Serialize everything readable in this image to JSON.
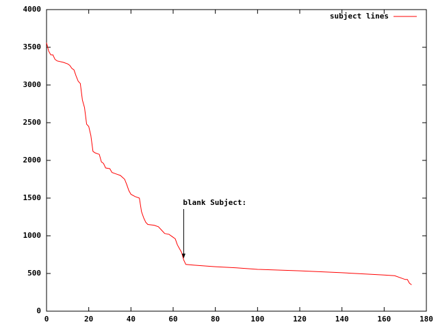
{
  "chart_data": {
    "type": "line",
    "x": [
      0,
      1,
      2,
      3,
      4,
      5,
      8,
      10,
      11,
      12,
      13,
      14,
      15,
      16,
      17,
      18,
      19,
      20,
      21,
      22,
      23,
      25,
      26,
      27,
      28,
      30,
      31,
      33,
      35,
      37,
      38,
      39,
      40,
      42,
      44,
      45,
      46,
      47,
      48,
      51,
      53,
      55,
      56,
      58,
      60,
      61,
      62,
      63,
      64,
      65,
      66,
      70,
      80,
      90,
      100,
      120,
      140,
      160,
      165,
      170,
      171,
      172,
      173
    ],
    "series": [
      {
        "name": "subject lines",
        "color": "#ff0000",
        "values": [
          3560,
          3450,
          3400,
          3400,
          3340,
          3320,
          3300,
          3280,
          3260,
          3220,
          3200,
          3120,
          3050,
          3020,
          2800,
          2700,
          2480,
          2450,
          2330,
          2120,
          2100,
          2080,
          1980,
          1960,
          1900,
          1890,
          1840,
          1820,
          1800,
          1750,
          1680,
          1600,
          1550,
          1520,
          1500,
          1320,
          1240,
          1180,
          1150,
          1140,
          1120,
          1060,
          1030,
          1020,
          980,
          960,
          880,
          830,
          780,
          680,
          620,
          610,
          590,
          575,
          555,
          535,
          510,
          480,
          470,
          420,
          420,
          370,
          350
        ]
      }
    ],
    "xlim": [
      0,
      180
    ],
    "xticks": [
      0,
      20,
      40,
      60,
      80,
      100,
      120,
      140,
      160,
      180
    ],
    "ylim": [
      0,
      4000
    ],
    "yticks": [
      0,
      500,
      1000,
      1500,
      2000,
      2500,
      3000,
      3500,
      4000
    ],
    "grid": false,
    "legend": "top-right",
    "annotations": [
      {
        "text": "blank Subject:",
        "x": 65,
        "y": 700
      }
    ]
  }
}
